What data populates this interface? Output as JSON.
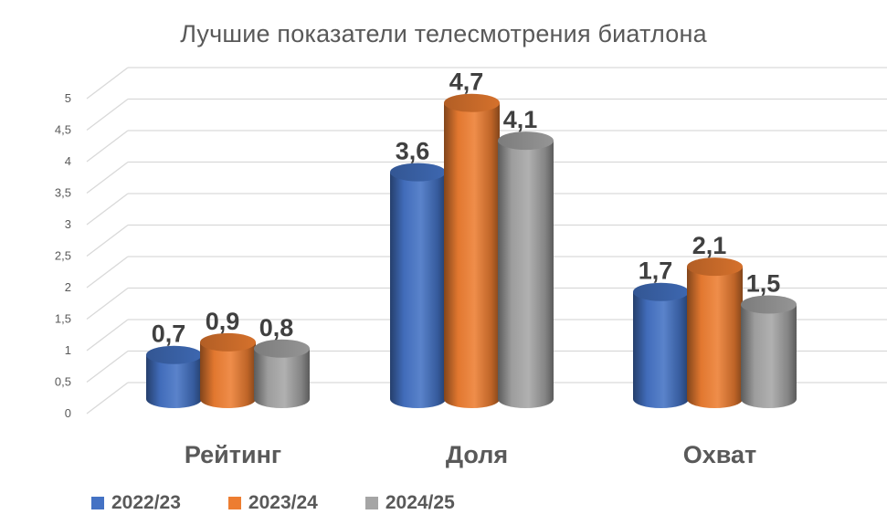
{
  "chart_data": {
    "type": "bar",
    "title": "Лучшие показатели телесмотрения биатлона",
    "categories": [
      "Рейтинг",
      "Доля",
      "Охват"
    ],
    "series": [
      {
        "name": "2022/23",
        "values": [
          0.7,
          3.6,
          1.7
        ],
        "labels": [
          "0,7",
          "3,6",
          "1,7"
        ]
      },
      {
        "name": "2023/24",
        "values": [
          0.9,
          4.7,
          2.1
        ],
        "labels": [
          "0,9",
          "4,7",
          "2,1"
        ]
      },
      {
        "name": "2024/25",
        "values": [
          0.8,
          4.1,
          1.5
        ],
        "labels": [
          "0,8",
          "4,1",
          "1,5"
        ]
      }
    ],
    "ylim": [
      0,
      5
    ],
    "yticks": [
      0,
      0.5,
      1,
      1.5,
      2,
      2.5,
      3,
      3.5,
      4,
      4.5,
      5
    ],
    "ytick_labels": [
      "0",
      "0,5",
      "1",
      "1,5",
      "2",
      "2,5",
      "3",
      "3,5",
      "4",
      "4,5",
      "5"
    ],
    "xlabel": "",
    "ylabel": "",
    "grid": true,
    "legend_position": "bottom-left",
    "shape": "3d-cylinder",
    "colors": [
      "#4472C4",
      "#ED7D31",
      "#A5A5A5"
    ]
  }
}
